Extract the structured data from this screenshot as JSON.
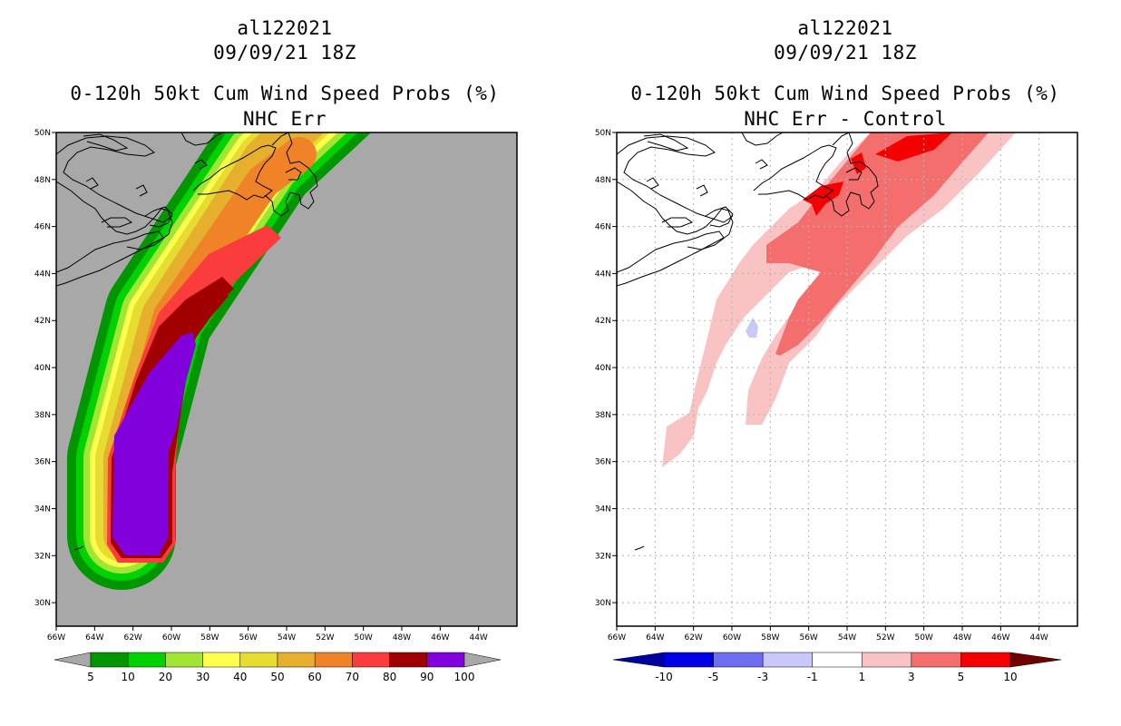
{
  "colors": {
    "background_left": "#a8a8a8",
    "background_right": "#ffffff",
    "coast": "#000000",
    "grid": "#b4b4b4"
  },
  "chart_data": [
    {
      "type": "heatmap",
      "title_lines": [
        "al122021",
        "09/09/21 18Z",
        "0-120h 50kt Cum Wind Speed Probs (%)",
        "NHC Err"
      ],
      "xlabel": "",
      "ylabel": "",
      "xlim": [
        -66,
        -42
      ],
      "ylim": [
        29,
        50
      ],
      "x_tick_labels": [
        "66W",
        "64W",
        "62W",
        "60W",
        "58W",
        "56W",
        "54W",
        "52W",
        "50W",
        "48W",
        "46W",
        "44W"
      ],
      "x_tick_values": [
        -66,
        -64,
        -62,
        -60,
        -58,
        -56,
        -54,
        -52,
        -50,
        -48,
        -46,
        -44
      ],
      "y_tick_labels": [
        "30N",
        "32N",
        "34N",
        "36N",
        "38N",
        "40N",
        "42N",
        "44N",
        "46N",
        "48N",
        "50N"
      ],
      "y_tick_values": [
        30,
        32,
        34,
        36,
        38,
        40,
        42,
        44,
        46,
        48,
        50
      ],
      "grid": false,
      "colorbar": {
        "labels": [
          "5",
          "10",
          "20",
          "30",
          "40",
          "50",
          "60",
          "70",
          "80",
          "90",
          "100"
        ],
        "colors": [
          "#009600",
          "#00d200",
          "#a0e632",
          "#ffff4e",
          "#e6dc32",
          "#e6af2d",
          "#f08228",
          "#fa3c3c",
          "#a00000",
          "#8200dc"
        ],
        "end_colors": [
          "#a8a8a8",
          "#a8a8a8"
        ]
      },
      "contour_bands": [
        {
          "level": 5,
          "color": "#009600",
          "width_deg": 4.4
        },
        {
          "level": 10,
          "color": "#00d200",
          "width_deg": 3.6
        },
        {
          "level": 20,
          "color": "#a0e632",
          "width_deg": 3.0
        },
        {
          "level": 30,
          "color": "#ffff4e",
          "width_deg": 2.5
        },
        {
          "level": 40,
          "color": "#e6dc32",
          "width_deg": 2.1
        },
        {
          "level": 50,
          "color": "#e6af2d",
          "width_deg": 1.7
        },
        {
          "level": 60,
          "color": "#f08228",
          "width_deg": 1.3
        }
      ]
    },
    {
      "type": "heatmap",
      "title_lines": [
        "al122021",
        "09/09/21 18Z",
        "0-120h 50kt Cum Wind Speed Probs (%)",
        "NHC Err - Control"
      ],
      "xlabel": "",
      "ylabel": "",
      "xlim": [
        -66,
        -42
      ],
      "ylim": [
        29,
        50
      ],
      "x_tick_labels": [
        "66W",
        "64W",
        "62W",
        "60W",
        "58W",
        "56W",
        "54W",
        "52W",
        "50W",
        "48W",
        "46W",
        "44W"
      ],
      "x_tick_values": [
        -66,
        -64,
        -62,
        -60,
        -58,
        -56,
        -54,
        -52,
        -50,
        -48,
        -46,
        -44
      ],
      "y_tick_labels": [
        "30N",
        "32N",
        "34N",
        "36N",
        "38N",
        "40N",
        "42N",
        "44N",
        "46N",
        "48N",
        "50N"
      ],
      "y_tick_values": [
        30,
        32,
        34,
        36,
        38,
        40,
        42,
        44,
        46,
        48,
        50
      ],
      "grid": true,
      "colorbar": {
        "labels": [
          "-10",
          "-5",
          "-3",
          "-1",
          "1",
          "3",
          "5",
          "10"
        ],
        "colors": [
          "#0000e6",
          "#6e6ef0",
          "#c8c8fa",
          "#ffffff",
          "#fac3c3",
          "#f56e6e",
          "#f50000"
        ],
        "end_colors": [
          "#0000a0",
          "#700000"
        ]
      }
    }
  ]
}
